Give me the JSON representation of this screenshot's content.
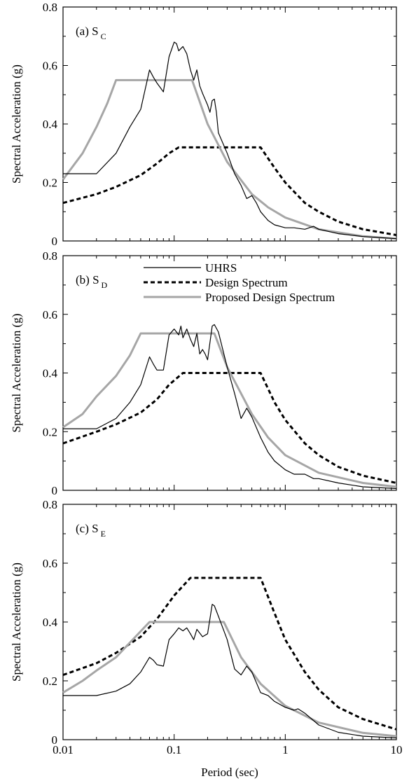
{
  "chart_data": [
    {
      "type": "line",
      "panel_label": "(a) S",
      "panel_sub": "C",
      "xlabel": "",
      "ylabel": "Spectral Acceleration (g)",
      "xscale": "log",
      "xlim": [
        0.01,
        10
      ],
      "ylim": [
        0,
        0.8
      ],
      "yticks": [
        "0",
        "0.2",
        "0.4",
        "0.6",
        "0.8"
      ],
      "xticks": [],
      "series": [
        {
          "name": "UHRS",
          "style": "thin",
          "points": [
            [
              0.01,
              0.23
            ],
            [
              0.02,
              0.23
            ],
            [
              0.03,
              0.3
            ],
            [
              0.04,
              0.39
            ],
            [
              0.05,
              0.45
            ],
            [
              0.06,
              0.585
            ],
            [
              0.065,
              0.56
            ],
            [
              0.07,
              0.54
            ],
            [
              0.08,
              0.51
            ],
            [
              0.09,
              0.63
            ],
            [
              0.1,
              0.68
            ],
            [
              0.105,
              0.675
            ],
            [
              0.11,
              0.65
            ],
            [
              0.12,
              0.665
            ],
            [
              0.13,
              0.64
            ],
            [
              0.14,
              0.585
            ],
            [
              0.15,
              0.55
            ],
            [
              0.16,
              0.585
            ],
            [
              0.17,
              0.53
            ],
            [
              0.18,
              0.505
            ],
            [
              0.2,
              0.465
            ],
            [
              0.21,
              0.44
            ],
            [
              0.22,
              0.48
            ],
            [
              0.23,
              0.485
            ],
            [
              0.24,
              0.44
            ],
            [
              0.25,
              0.37
            ],
            [
              0.3,
              0.3
            ],
            [
              0.35,
              0.23
            ],
            [
              0.4,
              0.19
            ],
            [
              0.45,
              0.145
            ],
            [
              0.5,
              0.155
            ],
            [
              0.55,
              0.13
            ],
            [
              0.6,
              0.1
            ],
            [
              0.7,
              0.07
            ],
            [
              0.8,
              0.055
            ],
            [
              1.0,
              0.045
            ],
            [
              1.2,
              0.045
            ],
            [
              1.5,
              0.04
            ],
            [
              1.8,
              0.05
            ],
            [
              2.0,
              0.04
            ],
            [
              3.0,
              0.025
            ],
            [
              5.0,
              0.015
            ],
            [
              10,
              0.008
            ]
          ]
        },
        {
          "name": "Design Spectrum",
          "style": "dashed",
          "points": [
            [
              0.01,
              0.13
            ],
            [
              0.02,
              0.16
            ],
            [
              0.03,
              0.185
            ],
            [
              0.05,
              0.225
            ],
            [
              0.07,
              0.265
            ],
            [
              0.09,
              0.3
            ],
            [
              0.11,
              0.32
            ],
            [
              0.6,
              0.32
            ],
            [
              0.8,
              0.25
            ],
            [
              1.0,
              0.2
            ],
            [
              1.5,
              0.13
            ],
            [
              2.0,
              0.1
            ],
            [
              3.0,
              0.066
            ],
            [
              5.0,
              0.04
            ],
            [
              10,
              0.02
            ]
          ]
        },
        {
          "name": "Proposed Design Spectrum",
          "style": "gray",
          "points": [
            [
              0.01,
              0.21
            ],
            [
              0.015,
              0.3
            ],
            [
              0.02,
              0.39
            ],
            [
              0.025,
              0.47
            ],
            [
              0.03,
              0.55
            ],
            [
              0.145,
              0.55
            ],
            [
              0.2,
              0.4
            ],
            [
              0.3,
              0.27
            ],
            [
              0.5,
              0.16
            ],
            [
              0.7,
              0.115
            ],
            [
              1.0,
              0.08
            ],
            [
              2.0,
              0.04
            ],
            [
              5.0,
              0.016
            ],
            [
              10,
              0.008
            ]
          ]
        }
      ],
      "show_legend": false
    },
    {
      "type": "line",
      "panel_label": "(b) S",
      "panel_sub": "D",
      "xlabel": "",
      "ylabel": "Spectral Acceleration (g)",
      "xscale": "log",
      "xlim": [
        0.01,
        10
      ],
      "ylim": [
        0,
        0.8
      ],
      "yticks": [
        "0",
        "0.2",
        "0.4",
        "0.6",
        "0.8"
      ],
      "xticks": [],
      "series": [
        {
          "name": "UHRS",
          "style": "thin",
          "points": [
            [
              0.01,
              0.21
            ],
            [
              0.02,
              0.21
            ],
            [
              0.03,
              0.245
            ],
            [
              0.04,
              0.3
            ],
            [
              0.05,
              0.36
            ],
            [
              0.06,
              0.455
            ],
            [
              0.065,
              0.43
            ],
            [
              0.07,
              0.41
            ],
            [
              0.08,
              0.41
            ],
            [
              0.09,
              0.53
            ],
            [
              0.1,
              0.55
            ],
            [
              0.11,
              0.53
            ],
            [
              0.115,
              0.56
            ],
            [
              0.12,
              0.52
            ],
            [
              0.13,
              0.55
            ],
            [
              0.14,
              0.515
            ],
            [
              0.15,
              0.49
            ],
            [
              0.16,
              0.535
            ],
            [
              0.17,
              0.465
            ],
            [
              0.18,
              0.48
            ],
            [
              0.19,
              0.465
            ],
            [
              0.2,
              0.445
            ],
            [
              0.22,
              0.56
            ],
            [
              0.23,
              0.565
            ],
            [
              0.25,
              0.54
            ],
            [
              0.3,
              0.42
            ],
            [
              0.35,
              0.33
            ],
            [
              0.4,
              0.245
            ],
            [
              0.45,
              0.28
            ],
            [
              0.5,
              0.25
            ],
            [
              0.6,
              0.18
            ],
            [
              0.7,
              0.13
            ],
            [
              0.8,
              0.1
            ],
            [
              1.0,
              0.07
            ],
            [
              1.2,
              0.055
            ],
            [
              1.5,
              0.055
            ],
            [
              1.8,
              0.04
            ],
            [
              2.0,
              0.04
            ],
            [
              3.0,
              0.025
            ],
            [
              5.0,
              0.012
            ],
            [
              10,
              0.006
            ]
          ]
        },
        {
          "name": "Design Spectrum",
          "style": "dashed",
          "points": [
            [
              0.01,
              0.16
            ],
            [
              0.02,
              0.2
            ],
            [
              0.03,
              0.225
            ],
            [
              0.05,
              0.265
            ],
            [
              0.07,
              0.31
            ],
            [
              0.09,
              0.36
            ],
            [
              0.12,
              0.4
            ],
            [
              0.6,
              0.4
            ],
            [
              0.8,
              0.3
            ],
            [
              1.0,
              0.24
            ],
            [
              1.5,
              0.16
            ],
            [
              2.0,
              0.12
            ],
            [
              3.0,
              0.08
            ],
            [
              5.0,
              0.05
            ],
            [
              10,
              0.025
            ]
          ]
        },
        {
          "name": "Proposed Design Spectrum",
          "style": "gray",
          "points": [
            [
              0.01,
              0.215
            ],
            [
              0.015,
              0.26
            ],
            [
              0.02,
              0.32
            ],
            [
              0.03,
              0.39
            ],
            [
              0.04,
              0.46
            ],
            [
              0.05,
              0.535
            ],
            [
              0.23,
              0.535
            ],
            [
              0.3,
              0.42
            ],
            [
              0.5,
              0.26
            ],
            [
              0.7,
              0.18
            ],
            [
              1.0,
              0.12
            ],
            [
              2.0,
              0.06
            ],
            [
              5.0,
              0.025
            ],
            [
              10,
              0.012
            ]
          ]
        }
      ],
      "show_legend": true,
      "legend": [
        "UHRS",
        "Design Spectrum",
        "Proposed Design Spectrum"
      ]
    },
    {
      "type": "line",
      "panel_label": "(c) S",
      "panel_sub": "E",
      "xlabel": "Period (sec)",
      "ylabel": "Spectral Acceleration (g)",
      "xscale": "log",
      "xlim": [
        0.01,
        10
      ],
      "ylim": [
        0,
        0.8
      ],
      "yticks": [
        "0",
        "0.2",
        "0.4",
        "0.6",
        "0.8"
      ],
      "xticks": [
        "0.01",
        "0.1",
        "1",
        "10"
      ],
      "series": [
        {
          "name": "UHRS",
          "style": "thin",
          "points": [
            [
              0.01,
              0.15
            ],
            [
              0.02,
              0.15
            ],
            [
              0.03,
              0.165
            ],
            [
              0.04,
              0.19
            ],
            [
              0.05,
              0.23
            ],
            [
              0.06,
              0.28
            ],
            [
              0.065,
              0.27
            ],
            [
              0.07,
              0.255
            ],
            [
              0.08,
              0.25
            ],
            [
              0.09,
              0.34
            ],
            [
              0.1,
              0.36
            ],
            [
              0.11,
              0.38
            ],
            [
              0.12,
              0.37
            ],
            [
              0.13,
              0.38
            ],
            [
              0.14,
              0.36
            ],
            [
              0.15,
              0.34
            ],
            [
              0.16,
              0.375
            ],
            [
              0.18,
              0.35
            ],
            [
              0.2,
              0.36
            ],
            [
              0.22,
              0.46
            ],
            [
              0.23,
              0.455
            ],
            [
              0.25,
              0.42
            ],
            [
              0.3,
              0.34
            ],
            [
              0.35,
              0.24
            ],
            [
              0.4,
              0.22
            ],
            [
              0.45,
              0.25
            ],
            [
              0.5,
              0.23
            ],
            [
              0.6,
              0.16
            ],
            [
              0.7,
              0.15
            ],
            [
              0.8,
              0.13
            ],
            [
              1.0,
              0.11
            ],
            [
              1.2,
              0.1
            ],
            [
              1.3,
              0.105
            ],
            [
              1.5,
              0.09
            ],
            [
              2.0,
              0.05
            ],
            [
              3.0,
              0.025
            ],
            [
              5.0,
              0.012
            ],
            [
              10,
              0.006
            ]
          ]
        },
        {
          "name": "Design Spectrum",
          "style": "dashed",
          "points": [
            [
              0.01,
              0.22
            ],
            [
              0.02,
              0.26
            ],
            [
              0.03,
              0.295
            ],
            [
              0.05,
              0.35
            ],
            [
              0.07,
              0.41
            ],
            [
              0.1,
              0.49
            ],
            [
              0.14,
              0.55
            ],
            [
              0.6,
              0.55
            ],
            [
              0.8,
              0.43
            ],
            [
              1.0,
              0.34
            ],
            [
              1.5,
              0.23
            ],
            [
              2.0,
              0.17
            ],
            [
              3.0,
              0.11
            ],
            [
              5.0,
              0.07
            ],
            [
              10,
              0.035
            ]
          ]
        },
        {
          "name": "Proposed Design Spectrum",
          "style": "gray",
          "points": [
            [
              0.01,
              0.16
            ],
            [
              0.015,
              0.2
            ],
            [
              0.02,
              0.235
            ],
            [
              0.03,
              0.28
            ],
            [
              0.04,
              0.33
            ],
            [
              0.06,
              0.4
            ],
            [
              0.28,
              0.4
            ],
            [
              0.4,
              0.28
            ],
            [
              0.6,
              0.19
            ],
            [
              1.0,
              0.115
            ],
            [
              2.0,
              0.058
            ],
            [
              5.0,
              0.023
            ],
            [
              10,
              0.012
            ]
          ]
        }
      ],
      "show_legend": false
    }
  ]
}
